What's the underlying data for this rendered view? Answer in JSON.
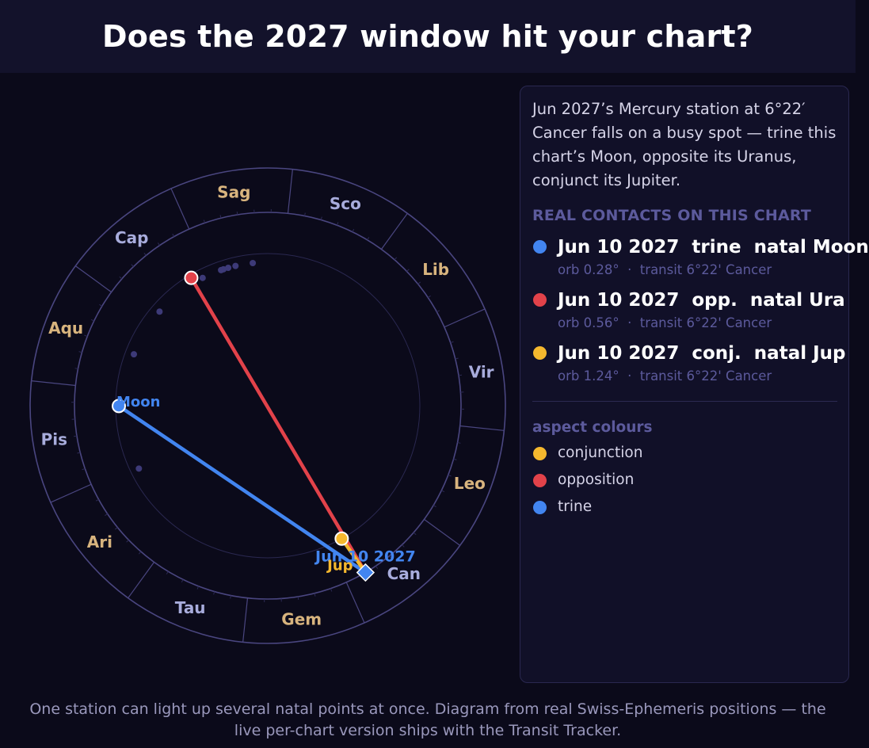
{
  "header": {
    "title": "Does the 2027 window hit your chart?"
  },
  "colors": {
    "conjunction": "#f5b82e",
    "opposition": "#e2424a",
    "trine": "#4285f0",
    "sign_fire_earth": "#d8b47e",
    "sign_air_water": "#a8acdc",
    "ring": "#4a4680",
    "minor_point": "#3d3a78"
  },
  "wheel": {
    "signs": [
      "Ari",
      "Tau",
      "Gem",
      "Can",
      "Leo",
      "Vir",
      "Lib",
      "Sco",
      "Sag",
      "Cap",
      "Aqu",
      "Pis"
    ],
    "transit": {
      "label": "Jun 10 2027",
      "longitude": 96.37
    },
    "natal_points": [
      {
        "name": "Moon",
        "longitude": 336.1,
        "aspect": "trine",
        "labeled": true
      },
      {
        "name": "Ura",
        "longitude": 276.9,
        "aspect": "opposition",
        "labeled": false
      },
      {
        "name": "Jup",
        "longitude": 95.1,
        "aspect": "conjunction",
        "labeled": true
      }
    ],
    "minor_points": [
      2,
      252,
      259,
      262,
      264,
      265,
      273,
      295,
      315
    ]
  },
  "panel": {
    "intro": "Jun 2027’s Mercury station at 6°22′ Cancer falls on a busy spot — trine this chart’s Moon, opposite its Uranus, conjunct its Jupiter.",
    "section_title": "REAL CONTACTS ON THIS CHART",
    "contacts": [
      {
        "title": "Jun 10 2027  trine  natal Moon",
        "sub": "orb 0.28°  ·  transit 6°22' Cancer",
        "aspect": "trine"
      },
      {
        "title": "Jun 10 2027  opp.  natal Ura",
        "sub": "orb 0.56°  ·  transit 6°22' Cancer",
        "aspect": "opposition"
      },
      {
        "title": "Jun 10 2027  conj.  natal Jup",
        "sub": "orb 1.24°  ·  transit 6°22' Cancer",
        "aspect": "conjunction"
      }
    ],
    "legend_title": "aspect colours",
    "legend": [
      {
        "label": "conjunction",
        "aspect": "conjunction"
      },
      {
        "label": "opposition",
        "aspect": "opposition"
      },
      {
        "label": "trine",
        "aspect": "trine"
      }
    ]
  },
  "footer": {
    "line1": "One station can light up several natal points at once. Diagram from real Swiss-Ephemeris positions — the",
    "line2": "live per-chart version ships with the Transit Tracker."
  }
}
